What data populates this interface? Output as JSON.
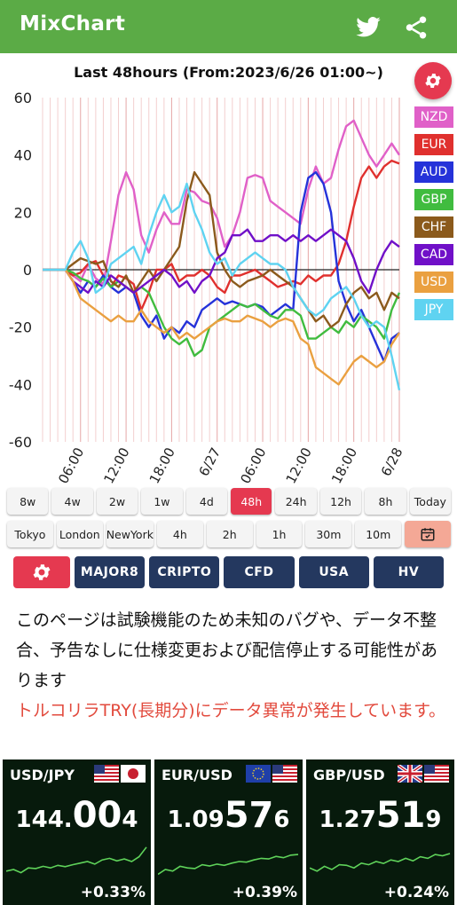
{
  "app": {
    "title": "MixChart",
    "share_icon": "share-icon",
    "twitter_icon": "twitter-icon"
  },
  "chart_data": {
    "type": "line",
    "title": "Last 48hours (From:2023/6/26 01:00~)",
    "ylim": [
      -60,
      60
    ],
    "yticks": [
      "60",
      "40",
      "20",
      "0",
      "-20",
      "-40",
      "-60"
    ],
    "xlim": [
      0,
      47
    ],
    "xticks": [
      {
        "h": 5,
        "label": "06:00"
      },
      {
        "h": 11,
        "label": "12:00"
      },
      {
        "h": 17,
        "label": "18:00"
      },
      {
        "h": 23,
        "label": "6/27"
      },
      {
        "h": 29,
        "label": "06:00"
      },
      {
        "h": 35,
        "label": "12:00"
      },
      {
        "h": 41,
        "label": "18:00"
      },
      {
        "h": 47,
        "label": "6/28"
      }
    ],
    "grid": "vertical",
    "legend_position": "right",
    "series": [
      {
        "name": "NZD",
        "color": "#e060c8",
        "values": [
          0,
          0,
          0,
          0,
          -2,
          -4,
          2,
          -3,
          -5,
          10,
          26,
          34,
          28,
          12,
          6,
          14,
          20,
          16,
          16,
          28,
          27,
          24,
          23,
          18,
          8,
          12,
          20,
          32,
          33,
          32,
          24,
          22,
          20,
          18,
          16,
          28,
          36,
          30,
          32,
          42,
          50,
          52,
          46,
          40,
          36,
          40,
          44,
          40
        ]
      },
      {
        "name": "EUR",
        "color": "#e0302e",
        "values": [
          0,
          0,
          0,
          0,
          -2,
          -1,
          2,
          3,
          -2,
          -6,
          -2,
          -3,
          -5,
          -14,
          -8,
          0,
          0,
          2,
          -4,
          -2,
          -2,
          0,
          -2,
          -6,
          -8,
          -2,
          -2,
          -1,
          0,
          -2,
          -4,
          -6,
          -5,
          -4,
          -5,
          -2,
          -4,
          -2,
          -2,
          2,
          10,
          22,
          32,
          36,
          32,
          36,
          38,
          37
        ]
      },
      {
        "name": "AUD",
        "color": "#2532d9",
        "values": [
          0,
          0,
          0,
          0,
          -4,
          -8,
          -4,
          -6,
          -2,
          -6,
          -8,
          -6,
          -8,
          -16,
          -20,
          -16,
          -24,
          -20,
          -22,
          -18,
          -20,
          -14,
          -12,
          -10,
          -12,
          -11,
          -12,
          -13,
          -12,
          -13,
          -16,
          -14,
          -12,
          -14,
          20,
          32,
          34,
          30,
          20,
          -4,
          -12,
          -18,
          -14,
          -20,
          -26,
          -32,
          -24,
          -22
        ]
      },
      {
        "name": "GBP",
        "color": "#40bc3f",
        "values": [
          0,
          0,
          0,
          0,
          -1,
          -3,
          -4,
          -6,
          -3,
          -6,
          -4,
          -6,
          -8,
          -6,
          -8,
          -14,
          -20,
          -24,
          -26,
          -24,
          -30,
          -28,
          -20,
          -18,
          -16,
          -14,
          -12,
          -13,
          -12,
          -14,
          -16,
          -17,
          -14,
          -14,
          -16,
          -24,
          -24,
          -22,
          -20,
          -22,
          -18,
          -20,
          -16,
          -18,
          -20,
          -24,
          -14,
          -8
        ]
      },
      {
        "name": "CHF",
        "color": "#8b5a1c",
        "values": [
          0,
          0,
          0,
          0,
          2,
          4,
          3,
          2,
          3,
          -4,
          -6,
          -2,
          -8,
          -4,
          0,
          -4,
          0,
          4,
          8,
          24,
          34,
          30,
          26,
          6,
          0,
          -4,
          -6,
          -4,
          -3,
          -2,
          0,
          -2,
          -4,
          -6,
          -10,
          -14,
          -18,
          -16,
          -20,
          -18,
          -12,
          -8,
          -6,
          -10,
          -8,
          -14,
          -8,
          -10
        ]
      },
      {
        "name": "CAD",
        "color": "#7010c8",
        "values": [
          0,
          0,
          0,
          0,
          -4,
          -6,
          -8,
          -4,
          -6,
          -2,
          -4,
          -6,
          -8,
          -6,
          -4,
          -2,
          0,
          -2,
          -6,
          -4,
          -8,
          -4,
          -2,
          4,
          6,
          12,
          12,
          14,
          10,
          10,
          12,
          12,
          10,
          12,
          10,
          12,
          10,
          12,
          14,
          12,
          10,
          4,
          -4,
          -8,
          0,
          6,
          10,
          8
        ]
      },
      {
        "name": "USD",
        "color": "#eaa040",
        "values": [
          0,
          0,
          0,
          0,
          -4,
          -10,
          -12,
          -14,
          -16,
          -18,
          -16,
          -18,
          -18,
          -14,
          -18,
          -20,
          -22,
          -20,
          -24,
          -22,
          -24,
          -22,
          -20,
          -18,
          -17,
          -18,
          -18,
          -16,
          -17,
          -18,
          -20,
          -18,
          -17,
          -18,
          -24,
          -26,
          -34,
          -36,
          -38,
          -40,
          -36,
          -32,
          -30,
          -32,
          -34,
          -32,
          -26,
          -22
        ]
      },
      {
        "name": "JPY",
        "color": "#5fd3f1",
        "values": [
          0,
          0,
          0,
          0,
          6,
          10,
          4,
          -8,
          -6,
          2,
          4,
          6,
          8,
          2,
          12,
          20,
          26,
          20,
          22,
          30,
          20,
          14,
          6,
          2,
          4,
          -2,
          2,
          4,
          6,
          4,
          2,
          2,
          0,
          -6,
          -10,
          -14,
          -16,
          -14,
          -10,
          -8,
          -6,
          -10,
          -16,
          -20,
          -18,
          -20,
          -30,
          -42
        ]
      }
    ]
  },
  "timeframes_row1": [
    "8w",
    "4w",
    "2w",
    "1w",
    "4d",
    "48h",
    "24h",
    "12h",
    "8h",
    "Today"
  ],
  "timeframes_row2": [
    "Tokyo",
    "London",
    "NewYork",
    "4h",
    "2h",
    "1h",
    "30m",
    "10m"
  ],
  "active_timeframe": "48h",
  "nav_buttons": [
    "MAJOR8",
    "CRIPTO",
    "CFD",
    "USA",
    "HV"
  ],
  "notice": {
    "text": "このページは試験機能のため未知のバグや、データ不整合、予告なしに仕様変更および配信停止する可能性があります",
    "warning": "トルコリラTRY(長期分)にデータ異常が発生しています。"
  },
  "tickers": [
    {
      "pair": "USD/JPY",
      "price_a": "144.",
      "price_b": "00",
      "price_c": "4",
      "change": "+0.33%",
      "flags": [
        "us",
        "jp"
      ],
      "spark": [
        0.2,
        0.25,
        0.15,
        0.3,
        0.28,
        0.35,
        0.3,
        0.38,
        0.34,
        0.4,
        0.45,
        0.5,
        0.42,
        0.55,
        0.6,
        0.52,
        0.58,
        0.5,
        0.65,
        0.95
      ]
    },
    {
      "pair": "EUR/USD",
      "price_a": "1.09",
      "price_b": "57",
      "price_c": "6",
      "change": "+0.39%",
      "flags": [
        "eu",
        "us"
      ],
      "spark": [
        0.1,
        0.25,
        0.2,
        0.35,
        0.3,
        0.28,
        0.4,
        0.36,
        0.42,
        0.38,
        0.45,
        0.5,
        0.48,
        0.55,
        0.6,
        0.58,
        0.66,
        0.62,
        0.7,
        0.72
      ]
    },
    {
      "pair": "GBP/USD",
      "price_a": "1.27",
      "price_b": "51",
      "price_c": "9",
      "change": "+0.24%",
      "flags": [
        "gb",
        "us"
      ],
      "spark": [
        0.3,
        0.2,
        0.35,
        0.25,
        0.4,
        0.38,
        0.3,
        0.45,
        0.4,
        0.5,
        0.44,
        0.55,
        0.5,
        0.6,
        0.52,
        0.65,
        0.6,
        0.72,
        0.68,
        0.75
      ]
    }
  ]
}
